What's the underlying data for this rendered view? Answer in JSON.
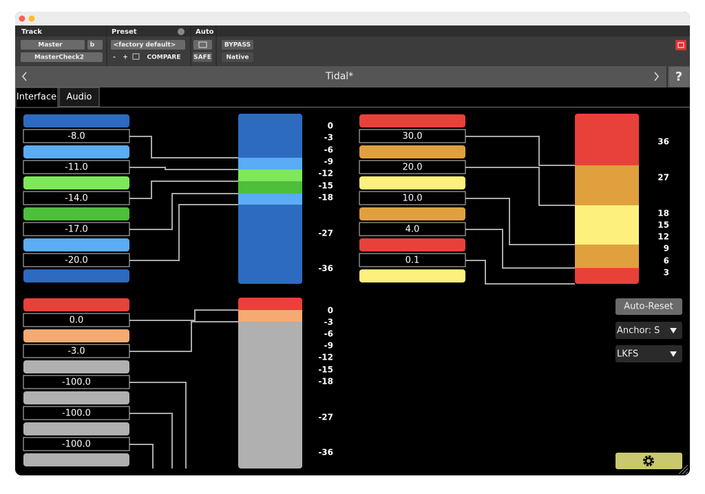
{
  "header": {
    "track_label": "Track",
    "preset_label": "Preset",
    "auto_label": "Auto",
    "track": "Master",
    "track_group": "b",
    "insert": "MasterCheck2",
    "preset": "<factory default>",
    "preset_minus": "-",
    "preset_plus": "+",
    "compare": "COMPARE",
    "safe": "SAFE",
    "bypass": "BYPASS",
    "native": "Native"
  },
  "nav": {
    "title": "Tidal*",
    "help": "?"
  },
  "tabs": [
    "Interface",
    "Audio"
  ],
  "panels": [
    {
      "values": [
        "-8.0",
        "-11.0",
        "-14.0",
        "-17.0",
        "-20.0"
      ],
      "scale": [
        "0",
        "-3",
        "-6",
        "-9",
        "-12",
        "-15",
        "-18",
        "-27",
        "-36"
      ]
    },
    {
      "values": [
        "30.0",
        "20.0",
        "10.0",
        "4.0",
        "0.1"
      ],
      "scale": [
        "36",
        "27",
        "18",
        "15",
        "12",
        "9",
        "6",
        "3"
      ]
    },
    {
      "values": [
        "0.0",
        "-3.0",
        "-100.0",
        "-100.0",
        "-100.0"
      ],
      "scale": [
        "0",
        "-3",
        "-6",
        "-9",
        "-12",
        "-15",
        "-18",
        "-27",
        "-36"
      ]
    }
  ],
  "controls": {
    "auto_reset": "Auto-Reset",
    "anchor": "Anchor: S",
    "unit": "LKFS"
  }
}
